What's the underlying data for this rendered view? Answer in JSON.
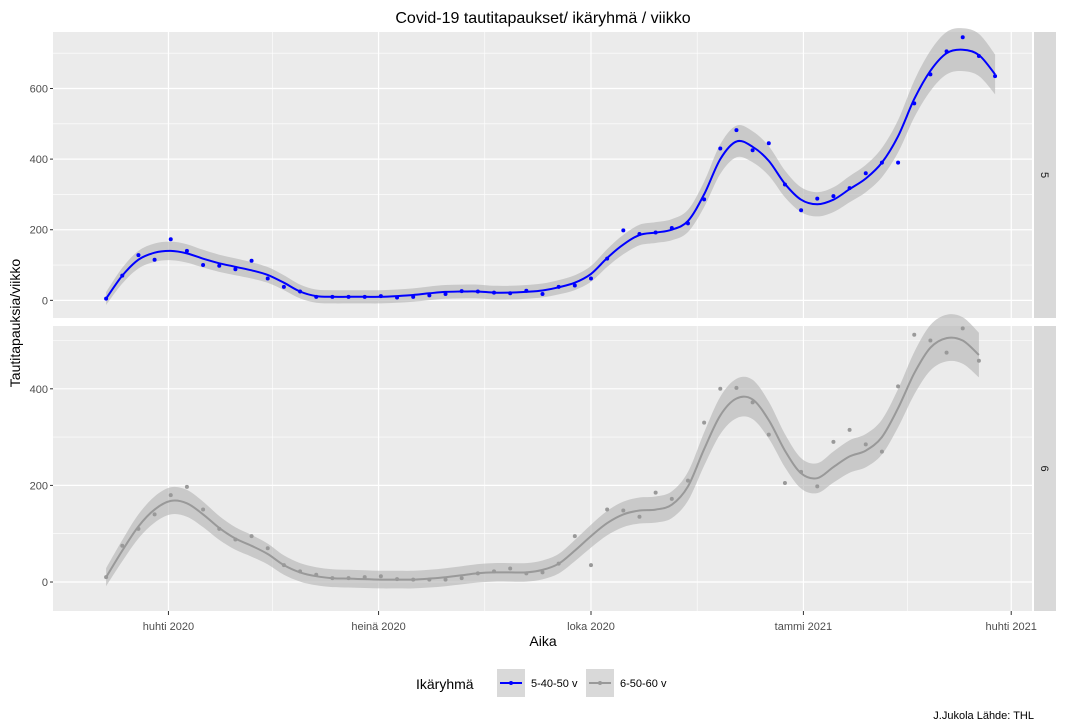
{
  "chart_data": {
    "type": "line",
    "title": "Covid-19 tautitapaukset/ ikäryhmä / viikko",
    "xlabel": "Aika",
    "ylabel": "Tautitapauksia/viikko",
    "caption": "J.Jukola  Lähde: THL",
    "legend": {
      "title": "Ikäryhmä",
      "placement": "bottom",
      "entries": [
        "5-40-50 v",
        "6-50-60 v"
      ]
    },
    "x_ticks": [
      {
        "date": "2020-04-01",
        "label": "huhti 2020"
      },
      {
        "date": "2020-07-01",
        "label": "heinä 2020"
      },
      {
        "date": "2020-10-01",
        "label": "loka 2020"
      },
      {
        "date": "2021-01-01",
        "label": "tammi 2021"
      },
      {
        "date": "2021-04-01",
        "label": "huhti 2021"
      }
    ],
    "xlim": [
      "2020-02-11",
      "2021-04-10"
    ],
    "grid": true,
    "smoothing": "loess with confidence band",
    "panels": [
      {
        "strip": "5",
        "color": "#0000ff",
        "ylim": [
          -50,
          760
        ],
        "y_ticks": [
          0,
          200,
          400,
          600
        ],
        "points": [
          [
            "2020-03-05",
            5
          ],
          [
            "2020-03-12",
            70
          ],
          [
            "2020-03-19",
            128
          ],
          [
            "2020-03-26",
            115
          ],
          [
            "2020-04-02",
            173
          ],
          [
            "2020-04-09",
            140
          ],
          [
            "2020-04-16",
            100
          ],
          [
            "2020-04-23",
            98
          ],
          [
            "2020-04-30",
            88
          ],
          [
            "2020-05-07",
            112
          ],
          [
            "2020-05-14",
            62
          ],
          [
            "2020-05-21",
            38
          ],
          [
            "2020-05-28",
            25
          ],
          [
            "2020-06-04",
            10
          ],
          [
            "2020-06-11",
            10
          ],
          [
            "2020-06-18",
            10
          ],
          [
            "2020-06-25",
            10
          ],
          [
            "2020-07-02",
            12
          ],
          [
            "2020-07-09",
            8
          ],
          [
            "2020-07-16",
            10
          ],
          [
            "2020-07-23",
            14
          ],
          [
            "2020-07-30",
            18
          ],
          [
            "2020-08-06",
            26
          ],
          [
            "2020-08-13",
            25
          ],
          [
            "2020-08-20",
            22
          ],
          [
            "2020-08-27",
            20
          ],
          [
            "2020-09-03",
            27
          ],
          [
            "2020-09-10",
            18
          ],
          [
            "2020-09-17",
            38
          ],
          [
            "2020-09-24",
            42
          ],
          [
            "2020-10-01",
            62
          ],
          [
            "2020-10-08",
            118
          ],
          [
            "2020-10-15",
            198
          ],
          [
            "2020-10-22",
            188
          ],
          [
            "2020-10-29",
            192
          ],
          [
            "2020-11-05",
            205
          ],
          [
            "2020-11-12",
            218
          ],
          [
            "2020-11-19",
            286
          ],
          [
            "2020-11-26",
            430
          ],
          [
            "2020-12-03",
            482
          ],
          [
            "2020-12-10",
            425
          ],
          [
            "2020-12-17",
            445
          ],
          [
            "2020-12-24",
            328
          ],
          [
            "2020-12-31",
            255
          ],
          [
            "2021-01-07",
            288
          ],
          [
            "2021-01-14",
            295
          ],
          [
            "2021-01-21",
            318
          ],
          [
            "2021-01-28",
            360
          ],
          [
            "2021-02-04",
            390
          ],
          [
            "2021-02-11",
            390
          ],
          [
            "2021-02-18",
            558
          ],
          [
            "2021-02-25",
            640
          ],
          [
            "2021-03-04",
            705
          ],
          [
            "2021-03-11",
            745
          ],
          [
            "2021-03-18",
            692
          ],
          [
            "2021-03-25",
            635
          ]
        ],
        "fit": [
          [
            "2020-03-05",
            5
          ],
          [
            "2020-03-12",
            70
          ],
          [
            "2020-03-19",
            115
          ],
          [
            "2020-03-26",
            135
          ],
          [
            "2020-04-02",
            140
          ],
          [
            "2020-04-09",
            133
          ],
          [
            "2020-04-16",
            118
          ],
          [
            "2020-04-23",
            105
          ],
          [
            "2020-04-30",
            95
          ],
          [
            "2020-05-07",
            85
          ],
          [
            "2020-05-14",
            72
          ],
          [
            "2020-05-21",
            50
          ],
          [
            "2020-05-28",
            25
          ],
          [
            "2020-06-04",
            12
          ],
          [
            "2020-06-11",
            10
          ],
          [
            "2020-06-18",
            10
          ],
          [
            "2020-06-25",
            10
          ],
          [
            "2020-07-02",
            10
          ],
          [
            "2020-07-09",
            12
          ],
          [
            "2020-07-16",
            15
          ],
          [
            "2020-07-23",
            20
          ],
          [
            "2020-07-30",
            24
          ],
          [
            "2020-08-06",
            25
          ],
          [
            "2020-08-13",
            25
          ],
          [
            "2020-08-20",
            22
          ],
          [
            "2020-08-27",
            22
          ],
          [
            "2020-09-03",
            24
          ],
          [
            "2020-09-10",
            28
          ],
          [
            "2020-09-17",
            37
          ],
          [
            "2020-09-24",
            50
          ],
          [
            "2020-10-01",
            75
          ],
          [
            "2020-10-08",
            120
          ],
          [
            "2020-10-15",
            158
          ],
          [
            "2020-10-22",
            185
          ],
          [
            "2020-10-29",
            192
          ],
          [
            "2020-11-05",
            200
          ],
          [
            "2020-11-12",
            225
          ],
          [
            "2020-11-19",
            300
          ],
          [
            "2020-11-26",
            400
          ],
          [
            "2020-12-03",
            450
          ],
          [
            "2020-12-10",
            435
          ],
          [
            "2020-12-17",
            395
          ],
          [
            "2020-12-24",
            330
          ],
          [
            "2020-12-31",
            285
          ],
          [
            "2021-01-07",
            272
          ],
          [
            "2021-01-14",
            285
          ],
          [
            "2021-01-21",
            315
          ],
          [
            "2021-01-28",
            345
          ],
          [
            "2021-02-04",
            390
          ],
          [
            "2021-02-11",
            465
          ],
          [
            "2021-02-18",
            570
          ],
          [
            "2021-02-25",
            650
          ],
          [
            "2021-03-04",
            700
          ],
          [
            "2021-03-11",
            710
          ],
          [
            "2021-03-18",
            695
          ],
          [
            "2021-03-25",
            640
          ]
        ]
      },
      {
        "strip": "6",
        "color": "#999999",
        "ylim": [
          -60,
          530
        ],
        "y_ticks": [
          0,
          200,
          400
        ],
        "points": [
          [
            "2020-03-05",
            10
          ],
          [
            "2020-03-12",
            75
          ],
          [
            "2020-03-19",
            110
          ],
          [
            "2020-03-26",
            140
          ],
          [
            "2020-04-02",
            180
          ],
          [
            "2020-04-09",
            197
          ],
          [
            "2020-04-16",
            150
          ],
          [
            "2020-04-23",
            110
          ],
          [
            "2020-04-30",
            88
          ],
          [
            "2020-05-07",
            95
          ],
          [
            "2020-05-14",
            70
          ],
          [
            "2020-05-21",
            35
          ],
          [
            "2020-05-28",
            22
          ],
          [
            "2020-06-04",
            15
          ],
          [
            "2020-06-11",
            8
          ],
          [
            "2020-06-18",
            8
          ],
          [
            "2020-06-25",
            10
          ],
          [
            "2020-07-02",
            12
          ],
          [
            "2020-07-09",
            6
          ],
          [
            "2020-07-16",
            5
          ],
          [
            "2020-07-23",
            5
          ],
          [
            "2020-07-30",
            5
          ],
          [
            "2020-08-06",
            8
          ],
          [
            "2020-08-13",
            18
          ],
          [
            "2020-08-20",
            22
          ],
          [
            "2020-08-27",
            28
          ],
          [
            "2020-09-03",
            18
          ],
          [
            "2020-09-10",
            20
          ],
          [
            "2020-09-17",
            38
          ],
          [
            "2020-09-24",
            95
          ],
          [
            "2020-10-01",
            35
          ],
          [
            "2020-10-08",
            150
          ],
          [
            "2020-10-15",
            148
          ],
          [
            "2020-10-22",
            135
          ],
          [
            "2020-10-29",
            185
          ],
          [
            "2020-11-05",
            172
          ],
          [
            "2020-11-12",
            210
          ],
          [
            "2020-11-19",
            330
          ],
          [
            "2020-11-26",
            400
          ],
          [
            "2020-12-03",
            402
          ],
          [
            "2020-12-10",
            372
          ],
          [
            "2020-12-17",
            305
          ],
          [
            "2020-12-24",
            205
          ],
          [
            "2020-12-31",
            228
          ],
          [
            "2021-01-07",
            198
          ],
          [
            "2021-01-14",
            290
          ],
          [
            "2021-01-21",
            315
          ],
          [
            "2021-01-28",
            285
          ],
          [
            "2021-02-04",
            270
          ],
          [
            "2021-02-11",
            405
          ],
          [
            "2021-02-18",
            512
          ],
          [
            "2021-02-25",
            500
          ],
          [
            "2021-03-04",
            475
          ],
          [
            "2021-03-11",
            525
          ],
          [
            "2021-03-18",
            458
          ]
        ],
        "fit": [
          [
            "2020-03-05",
            10
          ],
          [
            "2020-03-12",
            65
          ],
          [
            "2020-03-19",
            115
          ],
          [
            "2020-03-26",
            150
          ],
          [
            "2020-04-02",
            168
          ],
          [
            "2020-04-09",
            163
          ],
          [
            "2020-04-16",
            140
          ],
          [
            "2020-04-23",
            112
          ],
          [
            "2020-04-30",
            90
          ],
          [
            "2020-05-07",
            75
          ],
          [
            "2020-05-14",
            58
          ],
          [
            "2020-05-21",
            35
          ],
          [
            "2020-05-28",
            20
          ],
          [
            "2020-06-04",
            12
          ],
          [
            "2020-06-11",
            8
          ],
          [
            "2020-06-18",
            7
          ],
          [
            "2020-06-25",
            6
          ],
          [
            "2020-07-02",
            5
          ],
          [
            "2020-07-09",
            5
          ],
          [
            "2020-07-16",
            5
          ],
          [
            "2020-07-23",
            7
          ],
          [
            "2020-07-30",
            10
          ],
          [
            "2020-08-06",
            14
          ],
          [
            "2020-08-13",
            18
          ],
          [
            "2020-08-20",
            20
          ],
          [
            "2020-08-27",
            20
          ],
          [
            "2020-09-03",
            20
          ],
          [
            "2020-09-10",
            25
          ],
          [
            "2020-09-17",
            38
          ],
          [
            "2020-09-24",
            65
          ],
          [
            "2020-10-01",
            95
          ],
          [
            "2020-10-08",
            122
          ],
          [
            "2020-10-15",
            140
          ],
          [
            "2020-10-22",
            148
          ],
          [
            "2020-10-29",
            150
          ],
          [
            "2020-11-05",
            160
          ],
          [
            "2020-11-12",
            198
          ],
          [
            "2020-11-19",
            275
          ],
          [
            "2020-11-26",
            345
          ],
          [
            "2020-12-03",
            380
          ],
          [
            "2020-12-10",
            378
          ],
          [
            "2020-12-17",
            335
          ],
          [
            "2020-12-24",
            272
          ],
          [
            "2020-12-31",
            225
          ],
          [
            "2021-01-07",
            215
          ],
          [
            "2021-01-14",
            238
          ],
          [
            "2021-01-21",
            260
          ],
          [
            "2021-01-28",
            272
          ],
          [
            "2021-02-04",
            300
          ],
          [
            "2021-02-11",
            360
          ],
          [
            "2021-02-18",
            432
          ],
          [
            "2021-02-25",
            485
          ],
          [
            "2021-03-04",
            505
          ],
          [
            "2021-03-11",
            500
          ],
          [
            "2021-03-18",
            470
          ]
        ]
      }
    ]
  }
}
